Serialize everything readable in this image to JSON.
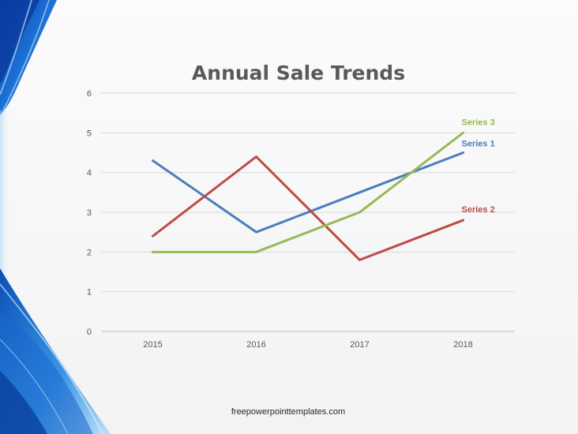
{
  "slide": {
    "footer": "freepowerpointtemplates.com"
  },
  "chart_data": {
    "type": "line",
    "title": "Annual Sale Trends",
    "xlabel": "",
    "ylabel": "",
    "categories": [
      "2015",
      "2016",
      "2017",
      "2018"
    ],
    "ylim": [
      0,
      6
    ],
    "yticks": [
      "0",
      "1",
      "2",
      "3",
      "4",
      "5",
      "6"
    ],
    "grid": true,
    "legend": "none",
    "series": [
      {
        "name": "Series 1",
        "values": [
          4.3,
          2.5,
          3.5,
          4.5
        ],
        "color": "#4a7ebb"
      },
      {
        "name": "Series 2",
        "values": [
          2.4,
          4.4,
          1.8,
          2.8
        ],
        "color": "#be4b48"
      },
      {
        "name": "Series 3",
        "values": [
          2.0,
          2.0,
          3.0,
          5.0
        ],
        "color": "#98b954"
      }
    ]
  }
}
